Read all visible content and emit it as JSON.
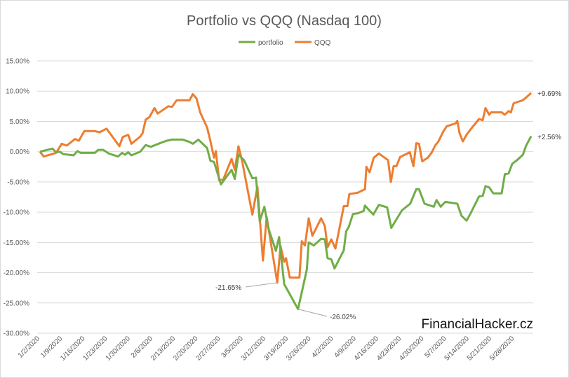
{
  "chart_data": {
    "type": "line",
    "title": "Portfolio vs QQQ (Nasdaq 100)",
    "xlabel": "",
    "ylabel": "",
    "ylim": [
      -30,
      15
    ],
    "y_ticks": [
      "15.00%",
      "10.00%",
      "5.00%",
      "0.00%",
      "-5.00%",
      "-10.00%",
      "-15.00%",
      "-20.00%",
      "-25.00%",
      "-30.00%"
    ],
    "y_tick_values": [
      15,
      10,
      5,
      0,
      -5,
      -10,
      -15,
      -20,
      -25,
      -30
    ],
    "x_ticks": [
      "1/2/2020",
      "1/9/2020",
      "1/16/2020",
      "1/23/2020",
      "1/30/2020",
      "2/6/2020",
      "2/13/2020",
      "2/20/2020",
      "2/27/2020",
      "3/5/2020",
      "3/12/2020",
      "3/19/2020",
      "3/26/2020",
      "4/2/2020",
      "4/9/2020",
      "4/16/2020",
      "4/23/2020",
      "4/30/2020",
      "5/7/2020",
      "5/14/2020",
      "5/21/2020",
      "5/28/2020"
    ],
    "x_unit": "trading day index from 1/2/2020",
    "grid": true,
    "legend_position": "top",
    "series": [
      {
        "name": "portfolio",
        "color": "#70AD47",
        "points": [
          [
            0,
            0
          ],
          [
            2.7,
            0.5
          ],
          [
            3.5,
            -0.1
          ],
          [
            4.3,
            0
          ],
          [
            5,
            -0.4
          ],
          [
            7.3,
            -0.6
          ],
          [
            8.1,
            0.1
          ],
          [
            8.8,
            -0.2
          ],
          [
            11.9,
            -0.2
          ],
          [
            12.6,
            0.3
          ],
          [
            13.7,
            0.3
          ],
          [
            14.9,
            -0.3
          ],
          [
            16.9,
            -0.8
          ],
          [
            17.8,
            -0.2
          ],
          [
            18.4,
            -0.5
          ],
          [
            19.1,
            -0.1
          ],
          [
            19.8,
            -0.6
          ],
          [
            21.7,
            0
          ],
          [
            22.9,
            1.1
          ],
          [
            24,
            0.8
          ],
          [
            26.3,
            1.5
          ],
          [
            27.4,
            1.8
          ],
          [
            28.6,
            2
          ],
          [
            30.9,
            2
          ],
          [
            32.4,
            1.6
          ],
          [
            33.1,
            1.3
          ],
          [
            34.3,
            2
          ],
          [
            36.2,
            0.6
          ],
          [
            36.9,
            -1.5
          ],
          [
            37.7,
            -1.7
          ],
          [
            39.2,
            -5.4
          ],
          [
            41.5,
            -3
          ],
          [
            42.2,
            -4.5
          ],
          [
            43,
            -0.5
          ],
          [
            44.2,
            -1.4
          ],
          [
            46,
            -4.4
          ],
          [
            46.8,
            -4.3
          ],
          [
            47.6,
            -11.5
          ],
          [
            48.6,
            -9.1
          ],
          [
            49.5,
            -12.7
          ],
          [
            51.1,
            -16.4
          ],
          [
            51.8,
            -14.1
          ],
          [
            52.9,
            -21.9
          ],
          [
            55.9,
            -26.02
          ],
          [
            57.1,
            -21.9
          ],
          [
            57.8,
            -19.5
          ],
          [
            58.2,
            -15
          ],
          [
            59.3,
            -15.5
          ],
          [
            60.9,
            -14.4
          ],
          [
            61.7,
            -14.5
          ],
          [
            62.3,
            -17.6
          ],
          [
            63.1,
            -17.8
          ],
          [
            63.8,
            -19.3
          ],
          [
            65.8,
            -16.3
          ],
          [
            66.3,
            -13.2
          ],
          [
            66.9,
            -12.4
          ],
          [
            67.8,
            -10.3
          ],
          [
            68.8,
            -10.2
          ],
          [
            70.1,
            -9.8
          ],
          [
            70.4,
            -8.9
          ],
          [
            71.1,
            -9.5
          ],
          [
            72.2,
            -10.4
          ],
          [
            72.8,
            -9.6
          ],
          [
            73.4,
            -8.8
          ],
          [
            75.2,
            -9.2
          ],
          [
            76.1,
            -12.6
          ],
          [
            77.2,
            -11.2
          ],
          [
            78.4,
            -9.7
          ],
          [
            80.2,
            -8.6
          ],
          [
            81.5,
            -6.2
          ],
          [
            82.1,
            -6.2
          ],
          [
            83.3,
            -8.6
          ],
          [
            85.3,
            -9.1
          ],
          [
            85.9,
            -8
          ],
          [
            86.8,
            -9.1
          ],
          [
            87.8,
            -8.3
          ],
          [
            90.4,
            -8.6
          ],
          [
            91.3,
            -10.6
          ],
          [
            92.4,
            -11.4
          ],
          [
            93.2,
            -10.3
          ],
          [
            95.1,
            -7.4
          ],
          [
            95.9,
            -7.3
          ],
          [
            96.5,
            -5.7
          ],
          [
            97.3,
            -5.9
          ],
          [
            98.2,
            -6.9
          ],
          [
            100,
            -6.9
          ],
          [
            100.7,
            -3.7
          ],
          [
            101.5,
            -3.6
          ],
          [
            102.3,
            -2
          ],
          [
            103.5,
            -1.3
          ],
          [
            104.6,
            -0.5
          ],
          [
            105.3,
            1
          ],
          [
            106.4,
            2.56
          ]
        ]
      },
      {
        "name": "QQQ",
        "color": "#ED7D31",
        "points": [
          [
            0,
            0
          ],
          [
            0.8,
            -0.8
          ],
          [
            3.5,
            -0.2
          ],
          [
            4.7,
            1.3
          ],
          [
            5.8,
            1
          ],
          [
            7.6,
            2.1
          ],
          [
            8.4,
            1.8
          ],
          [
            9.6,
            3.4
          ],
          [
            11.9,
            3.4
          ],
          [
            12.9,
            3.2
          ],
          [
            14.4,
            3.8
          ],
          [
            17.2,
            0.9
          ],
          [
            17.9,
            2.4
          ],
          [
            19.1,
            2.8
          ],
          [
            19.8,
            1.3
          ],
          [
            21.7,
            2.5
          ],
          [
            22.2,
            3
          ],
          [
            22.9,
            5.3
          ],
          [
            23.7,
            5.7
          ],
          [
            24.8,
            7.2
          ],
          [
            25.5,
            6.3
          ],
          [
            27.8,
            7.5
          ],
          [
            28.6,
            7.4
          ],
          [
            29.6,
            8.5
          ],
          [
            32.4,
            8.5
          ],
          [
            33.1,
            9.5
          ],
          [
            33.9,
            8.8
          ],
          [
            34.7,
            6.5
          ],
          [
            36.2,
            4
          ],
          [
            36.9,
            1.8
          ],
          [
            37.7,
            -1
          ],
          [
            38.1,
            0.1
          ],
          [
            38.8,
            -4.7
          ],
          [
            39.7,
            -4.6
          ],
          [
            41.5,
            -1.2
          ],
          [
            42.2,
            -3
          ],
          [
            43,
            0.9
          ],
          [
            43.8,
            -1.6
          ],
          [
            46,
            -10.4
          ],
          [
            47.1,
            -5.8
          ],
          [
            48.3,
            -18
          ],
          [
            49.1,
            -10.8
          ],
          [
            51.4,
            -21.65
          ],
          [
            52.1,
            -15.6
          ],
          [
            52.9,
            -18.2
          ],
          [
            53.3,
            -17.6
          ],
          [
            54.1,
            -20.8
          ],
          [
            56.2,
            -20.8
          ],
          [
            56.7,
            -14.8
          ],
          [
            57.4,
            -15.5
          ],
          [
            58.2,
            -11
          ],
          [
            59,
            -13.9
          ],
          [
            60.9,
            -11
          ],
          [
            61.7,
            -12.3
          ],
          [
            62.3,
            -15.8
          ],
          [
            63.1,
            -14.5
          ],
          [
            64,
            -16
          ],
          [
            65.8,
            -9
          ],
          [
            66.6,
            -9
          ],
          [
            67,
            -7
          ],
          [
            68.8,
            -6.8
          ],
          [
            70.4,
            -6.2
          ],
          [
            70.7,
            -2.5
          ],
          [
            71.4,
            -3.4
          ],
          [
            72.3,
            -1
          ],
          [
            73.4,
            -0.3
          ],
          [
            75.4,
            -1.4
          ],
          [
            76,
            -5
          ],
          [
            76.6,
            -2.4
          ],
          [
            77.2,
            -2.4
          ],
          [
            78,
            -0.9
          ],
          [
            80.1,
            -0.1
          ],
          [
            80.9,
            -2.4
          ],
          [
            81.5,
            1.4
          ],
          [
            82.1,
            1.3
          ],
          [
            82.8,
            -1.6
          ],
          [
            84,
            -1
          ],
          [
            84.8,
            -0.2
          ],
          [
            85.6,
            1
          ],
          [
            86.3,
            1.7
          ],
          [
            87.4,
            3.4
          ],
          [
            88.1,
            4.2
          ],
          [
            90.1,
            4.7
          ],
          [
            90.4,
            5.1
          ],
          [
            90.9,
            3
          ],
          [
            91.6,
            1.7
          ],
          [
            92.4,
            2.8
          ],
          [
            93.5,
            3.9
          ],
          [
            95.1,
            5.4
          ],
          [
            95.9,
            5.2
          ],
          [
            96.5,
            7.2
          ],
          [
            97.3,
            6.1
          ],
          [
            97.7,
            6.5
          ],
          [
            100,
            6.5
          ],
          [
            100.7,
            6.1
          ],
          [
            101.5,
            6.7
          ],
          [
            102,
            6.5
          ],
          [
            102.6,
            8
          ],
          [
            104.6,
            8.5
          ],
          [
            106.4,
            9.69
          ]
        ]
      }
    ],
    "annotations": [
      {
        "text": "-21.65%",
        "series": "QQQ",
        "x": 51.4,
        "y": -21.65
      },
      {
        "text": "-26.02%",
        "series": "portfolio",
        "x": 55.9,
        "y": -26.02
      },
      {
        "text": "+9.69%",
        "series": "QQQ",
        "x": 106.4,
        "y": 9.69
      },
      {
        "text": "+2.56%",
        "series": "portfolio",
        "x": 106.4,
        "y": 2.56
      }
    ]
  },
  "watermark": "FinancialHacker.cz"
}
